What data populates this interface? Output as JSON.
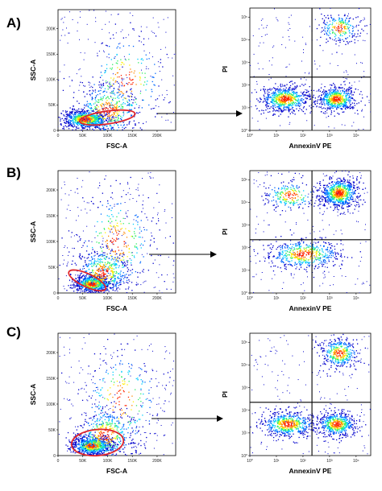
{
  "colors": {
    "density": [
      "#0000cc",
      "#0066ff",
      "#00ccff",
      "#33ee66",
      "#ffee00",
      "#ff8800",
      "#ff2200"
    ],
    "gate": "#e0262b",
    "frame": "#000000"
  },
  "chart_data": [
    {
      "type": "scatter",
      "panel_label": "A)",
      "xlabel": "FSC-A",
      "ylabel": "SSC-A",
      "x_ticks": [
        "0",
        "50K",
        "100K",
        "150K",
        "200K"
      ],
      "y_ticks": [
        "0",
        "50K",
        "100K",
        "150K",
        "200K"
      ],
      "xlim": [
        0,
        262144
      ],
      "ylim": [
        0,
        262144
      ],
      "gate": {
        "shape": "ellipse",
        "center": [
          110000,
          28000
        ],
        "radii": [
          62000,
          14000
        ],
        "angle_deg": 8
      },
      "density_clusters": [
        {
          "x": 60000,
          "y": 25000,
          "sx": 25000,
          "sy": 10000,
          "weight": 0.55
        },
        {
          "x": 110000,
          "y": 45000,
          "sx": 35000,
          "sy": 30000,
          "weight": 0.3
        },
        {
          "x": 150000,
          "y": 110000,
          "sx": 45000,
          "sy": 55000,
          "weight": 0.15
        }
      ]
    },
    {
      "type": "scatter",
      "xlabel": "AnnexinV PE",
      "ylabel": "PI",
      "scale": "log",
      "x_ticks": [
        "10⁰",
        "10¹",
        "10²",
        "10³",
        "10⁴"
      ],
      "y_ticks": [
        "10⁰",
        "10¹",
        "10²",
        "10³",
        "10⁴",
        "10⁵"
      ],
      "xlim": [
        1,
        30000
      ],
      "ylim": [
        1,
        100000
      ],
      "quadrant": {
        "x": 200,
        "y": 150
      },
      "density_clusters": [
        {
          "lx": 1.3,
          "ly": 1.3,
          "sx": 0.45,
          "sy": 0.25,
          "weight": 0.45
        },
        {
          "lx": 3.2,
          "ly": 1.3,
          "sx": 0.35,
          "sy": 0.25,
          "weight": 0.4
        },
        {
          "lx": 3.3,
          "ly": 4.2,
          "sx": 0.35,
          "sy": 0.3,
          "weight": 0.15
        }
      ]
    },
    {
      "type": "scatter",
      "panel_label": "B)",
      "xlabel": "FSC-A",
      "ylabel": "SSC-A",
      "x_ticks": [
        "0",
        "50K",
        "100K",
        "150K",
        "200K"
      ],
      "y_ticks": [
        "0",
        "50K",
        "100K",
        "150K",
        "200K"
      ],
      "xlim": [
        0,
        262144
      ],
      "ylim": [
        0,
        262144
      ],
      "gate": {
        "shape": "ellipse",
        "center": [
          65000,
          27000
        ],
        "radii": [
          45000,
          14000
        ],
        "angle_deg": -25
      },
      "density_clusters": [
        {
          "x": 75000,
          "y": 20000,
          "sx": 20000,
          "sy": 9000,
          "weight": 0.5
        },
        {
          "x": 100000,
          "y": 45000,
          "sx": 30000,
          "sy": 25000,
          "weight": 0.3
        },
        {
          "x": 130000,
          "y": 110000,
          "sx": 45000,
          "sy": 55000,
          "weight": 0.2
        }
      ]
    },
    {
      "type": "scatter",
      "xlabel": "AnnexinV PE",
      "ylabel": "PI",
      "scale": "log",
      "x_ticks": [
        "10⁰",
        "10¹",
        "10²",
        "10³",
        "10⁴"
      ],
      "y_ticks": [
        "10⁰",
        "10¹",
        "10²",
        "10³",
        "10⁴",
        "10⁵"
      ],
      "xlim": [
        1,
        30000
      ],
      "ylim": [
        1,
        100000
      ],
      "quadrant": {
        "x": 200,
        "y": 150
      },
      "density_clusters": [
        {
          "lx": 3.3,
          "ly": 4.1,
          "sx": 0.35,
          "sy": 0.3,
          "weight": 0.5
        },
        {
          "lx": 1.5,
          "ly": 4.0,
          "sx": 0.5,
          "sy": 0.3,
          "weight": 0.15
        },
        {
          "lx": 2.0,
          "ly": 1.6,
          "sx": 0.7,
          "sy": 0.3,
          "weight": 0.35
        }
      ]
    },
    {
      "type": "scatter",
      "panel_label": "C)",
      "xlabel": "FSC-A",
      "ylabel": "SSC-A",
      "x_ticks": [
        "0",
        "50K",
        "100K",
        "150K",
        "200K"
      ],
      "y_ticks": [
        "0",
        "50K",
        "100K",
        "150K",
        "200K"
      ],
      "xlim": [
        0,
        262144
      ],
      "ylim": [
        0,
        262144
      ],
      "gate": {
        "shape": "ellipse",
        "center": [
          88000,
          28000
        ],
        "radii": [
          58000,
          28000
        ],
        "angle_deg": 5
      },
      "density_clusters": [
        {
          "x": 75000,
          "y": 22000,
          "sx": 22000,
          "sy": 10000,
          "weight": 0.55
        },
        {
          "x": 105000,
          "y": 45000,
          "sx": 32000,
          "sy": 28000,
          "weight": 0.3
        },
        {
          "x": 140000,
          "y": 120000,
          "sx": 45000,
          "sy": 55000,
          "weight": 0.15
        }
      ]
    },
    {
      "type": "scatter",
      "xlabel": "AnnexinV PE",
      "ylabel": "PI",
      "scale": "log",
      "x_ticks": [
        "10⁰",
        "10¹",
        "10²",
        "10³",
        "10⁴"
      ],
      "y_ticks": [
        "10⁰",
        "10¹",
        "10²",
        "10³",
        "10⁴",
        "10⁵"
      ],
      "xlim": [
        1,
        30000
      ],
      "ylim": [
        1,
        100000
      ],
      "quadrant": {
        "x": 200,
        "y": 150
      },
      "density_clusters": [
        {
          "lx": 1.4,
          "ly": 1.3,
          "sx": 0.5,
          "sy": 0.25,
          "weight": 0.4
        },
        {
          "lx": 3.2,
          "ly": 1.3,
          "sx": 0.35,
          "sy": 0.25,
          "weight": 0.35
        },
        {
          "lx": 3.3,
          "ly": 4.2,
          "sx": 0.35,
          "sy": 0.3,
          "weight": 0.25
        }
      ]
    }
  ]
}
